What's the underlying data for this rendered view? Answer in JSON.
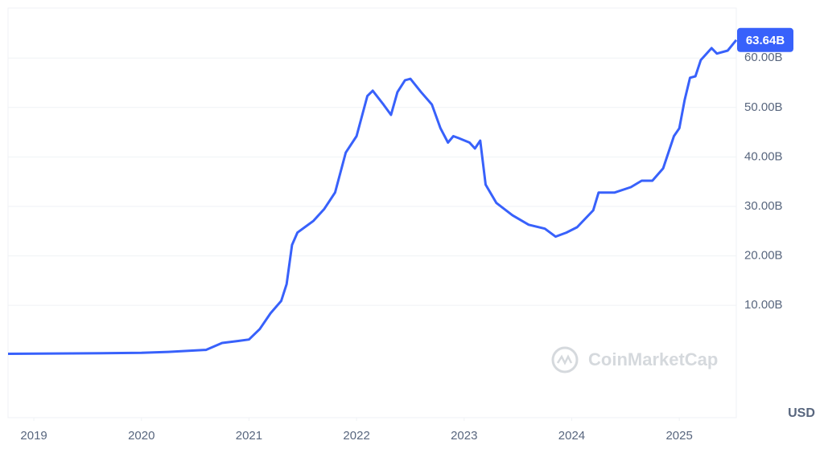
{
  "chart_data": {
    "type": "line",
    "x": [
      2018.76,
      2019.5,
      2020.0,
      2020.25,
      2020.6,
      2020.75,
      2020.9,
      2021.0,
      2021.1,
      2021.2,
      2021.3,
      2021.35,
      2021.4,
      2021.45,
      2021.6,
      2021.7,
      2021.8,
      2021.9,
      2022.0,
      2022.1,
      2022.15,
      2022.25,
      2022.32,
      2022.38,
      2022.45,
      2022.5,
      2022.6,
      2022.7,
      2022.78,
      2022.85,
      2022.9,
      2022.95,
      2023.05,
      2023.1,
      2023.15,
      2023.2,
      2023.3,
      2023.45,
      2023.6,
      2023.75,
      2023.85,
      2023.95,
      2024.05,
      2024.2,
      2024.25,
      2024.4,
      2024.55,
      2024.65,
      2024.75,
      2024.85,
      2024.95,
      2025.0,
      2025.05,
      2025.1,
      2025.15,
      2025.2,
      2025.3,
      2025.35,
      2025.45,
      2025.53
    ],
    "values": [
      0.2,
      0.3,
      0.4,
      0.6,
      1.0,
      2.4,
      2.8,
      3.1,
      5.2,
      8.4,
      10.9,
      14.3,
      22.2,
      24.7,
      27.1,
      29.5,
      32.8,
      40.9,
      44.2,
      52.3,
      53.4,
      50.6,
      48.5,
      53.1,
      55.5,
      55.8,
      53.1,
      50.6,
      45.8,
      42.9,
      44.2,
      43.8,
      42.9,
      41.7,
      43.3,
      34.4,
      30.7,
      28.2,
      26.3,
      25.5,
      23.9,
      24.7,
      25.8,
      29.2,
      32.8,
      32.8,
      33.9,
      35.2,
      35.2,
      37.7,
      44.2,
      45.8,
      51.5,
      56.0,
      56.3,
      59.6,
      62.0,
      60.9,
      61.5,
      63.64
    ],
    "color": "#3861fb",
    "current_value": {
      "value": 63.64,
      "label": "63.64B"
    },
    "xlim": [
      2018.76,
      2025.53
    ],
    "xticks": [
      2019,
      2020,
      2021,
      2022,
      2023,
      2024,
      2025
    ],
    "ylim": [
      -12.7,
      70.1
    ],
    "yticks": [
      {
        "value": 10,
        "label": "10.00B"
      },
      {
        "value": 20,
        "label": "20.00B"
      },
      {
        "value": 30,
        "label": "30.00B"
      },
      {
        "value": 40,
        "label": "40.00B"
      },
      {
        "value": 50,
        "label": "50.00B"
      },
      {
        "value": 60,
        "label": "60.00B"
      }
    ],
    "grid": true,
    "currency": "USD",
    "watermark": "CoinMarketCap"
  }
}
